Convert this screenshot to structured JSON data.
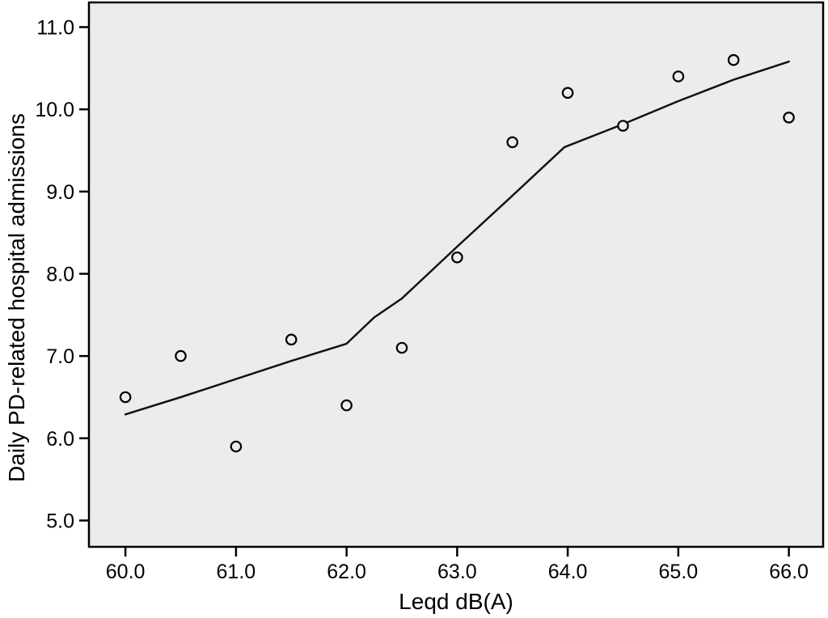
{
  "figure": {
    "background": "#ffffff"
  },
  "chart_data": {
    "type": "scatter",
    "title": "",
    "xlabel": "Leqd dB(A)",
    "ylabel": "Daily PD-related hospital admissions",
    "xlim": [
      59.67,
      66.31
    ],
    "ylim": [
      4.68,
      11.3
    ],
    "grid": false,
    "legend": "none",
    "plot_bg_color": "#ececec",
    "frame_color": "#000000",
    "line_color": "#121212",
    "marker": "open-circle",
    "marker_fill": "#ececec",
    "x_ticks": {
      "values": [
        60.0,
        61.0,
        62.0,
        63.0,
        64.0,
        65.0,
        66.0
      ],
      "labels": [
        "60.0",
        "61.0",
        "62.0",
        "63.0",
        "64.0",
        "65.0",
        "66.0"
      ]
    },
    "y_ticks": {
      "values": [
        5.0,
        6.0,
        7.0,
        8.0,
        9.0,
        10.0,
        11.0
      ],
      "labels": [
        "5.0",
        "6.0",
        "7.0",
        "8.0",
        "9.0",
        "10.0",
        "11.0"
      ]
    },
    "series": [
      {
        "name": "observed-daily-admissions",
        "type": "scatter",
        "x": [
          60.0,
          60.5,
          61.0,
          61.5,
          62.0,
          62.5,
          63.0,
          63.5,
          64.0,
          64.5,
          65.0,
          65.5,
          66.0
        ],
        "y": [
          6.5,
          7.0,
          5.9,
          7.2,
          6.4,
          7.1,
          8.2,
          9.6,
          10.2,
          9.8,
          10.4,
          10.6,
          9.9
        ]
      },
      {
        "name": "loess-fit-line",
        "type": "line",
        "x": [
          60.0,
          60.5,
          61.0,
          61.5,
          62.0,
          62.25,
          62.5,
          63.0,
          63.5,
          63.97,
          64.5,
          65.0,
          65.5,
          66.0
        ],
        "y": [
          6.29,
          6.5,
          6.72,
          6.94,
          7.15,
          7.47,
          7.7,
          8.33,
          8.95,
          9.54,
          9.82,
          10.1,
          10.36,
          10.58
        ]
      }
    ]
  }
}
